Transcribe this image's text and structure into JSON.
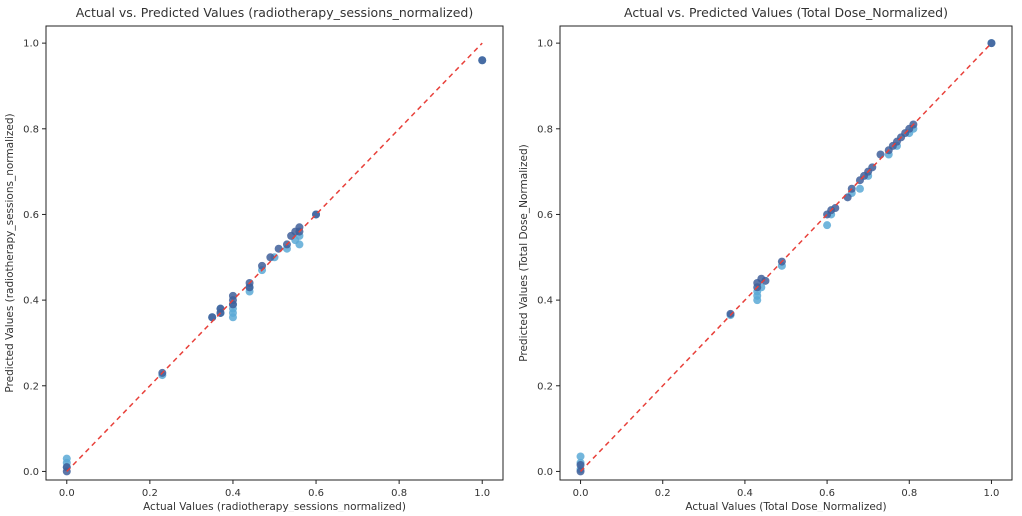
{
  "chart_data": [
    {
      "type": "scatter",
      "title": "Actual vs. Predicted Values (radiotherapy_sessions_normalized)",
      "xlabel": "Actual Values (radiotherapy_sessions_normalized)",
      "ylabel": "Predicted Values (radiotherapy_sessions_normalized)",
      "xlim": [
        -0.05,
        1.05
      ],
      "ylim": [
        -0.02,
        1.04
      ],
      "xticks": [
        "0.0",
        "0.2",
        "0.4",
        "0.6",
        "0.8",
        "1.0"
      ],
      "yticks": [
        "0.0",
        "0.2",
        "0.4",
        "0.6",
        "0.8",
        "1.0"
      ],
      "grid": false,
      "reference_line": {
        "from": [
          0,
          0
        ],
        "to": [
          1,
          1
        ],
        "style": "dashed",
        "color": "#e8403a"
      },
      "series": [
        {
          "color": "#5aa9d6",
          "points": [
            [
              0.0,
              0.03
            ],
            [
              0.0,
              0.02
            ],
            [
              0.0,
              0.01
            ],
            [
              0.23,
              0.225
            ],
            [
              0.35,
              0.36
            ],
            [
              0.37,
              0.37
            ],
            [
              0.37,
              0.38
            ],
            [
              0.4,
              0.37
            ],
            [
              0.4,
              0.36
            ],
            [
              0.4,
              0.38
            ],
            [
              0.4,
              0.39
            ],
            [
              0.44,
              0.42
            ],
            [
              0.44,
              0.43
            ],
            [
              0.47,
              0.47
            ],
            [
              0.5,
              0.5
            ],
            [
              0.53,
              0.52
            ],
            [
              0.55,
              0.54
            ],
            [
              0.56,
              0.53
            ],
            [
              0.56,
              0.55
            ],
            [
              0.6,
              0.6
            ],
            [
              1.0,
              0.96
            ]
          ]
        },
        {
          "color": "#3f5f9a",
          "points": [
            [
              0.0,
              0.0
            ],
            [
              0.0,
              0.01
            ],
            [
              0.23,
              0.23
            ],
            [
              0.35,
              0.36
            ],
            [
              0.37,
              0.37
            ],
            [
              0.37,
              0.38
            ],
            [
              0.4,
              0.39
            ],
            [
              0.4,
              0.4
            ],
            [
              0.4,
              0.41
            ],
            [
              0.44,
              0.44
            ],
            [
              0.44,
              0.43
            ],
            [
              0.47,
              0.48
            ],
            [
              0.49,
              0.5
            ],
            [
              0.51,
              0.52
            ],
            [
              0.53,
              0.53
            ],
            [
              0.54,
              0.55
            ],
            [
              0.55,
              0.56
            ],
            [
              0.56,
              0.57
            ],
            [
              0.56,
              0.56
            ],
            [
              0.6,
              0.6
            ],
            [
              1.0,
              0.96
            ]
          ]
        }
      ]
    },
    {
      "type": "scatter",
      "title": "Actual vs. Predicted Values (Total Dose_Normalized)",
      "xlabel": "Actual Values (Total Dose_Normalized)",
      "ylabel": "Predicted Values (Total Dose_Normalized)",
      "xlim": [
        -0.05,
        1.05
      ],
      "ylim": [
        -0.02,
        1.04
      ],
      "xticks": [
        "0.0",
        "0.2",
        "0.4",
        "0.6",
        "0.8",
        "1.0"
      ],
      "yticks": [
        "0.0",
        "0.2",
        "0.4",
        "0.6",
        "0.8",
        "1.0"
      ],
      "grid": false,
      "reference_line": {
        "from": [
          0,
          0
        ],
        "to": [
          1,
          1
        ],
        "style": "dashed",
        "color": "#e8403a"
      },
      "series": [
        {
          "color": "#5aa9d6",
          "points": [
            [
              0.0,
              0.035
            ],
            [
              0.0,
              0.02
            ],
            [
              0.0,
              0.005
            ],
            [
              0.365,
              0.365
            ],
            [
              0.43,
              0.4
            ],
            [
              0.43,
              0.41
            ],
            [
              0.43,
              0.42
            ],
            [
              0.44,
              0.43
            ],
            [
              0.49,
              0.48
            ],
            [
              0.6,
              0.575
            ],
            [
              0.61,
              0.6
            ],
            [
              0.66,
              0.65
            ],
            [
              0.68,
              0.66
            ],
            [
              0.7,
              0.69
            ],
            [
              0.75,
              0.74
            ],
            [
              0.77,
              0.76
            ],
            [
              0.8,
              0.79
            ],
            [
              0.81,
              0.8
            ],
            [
              1.0,
              1.0
            ]
          ]
        },
        {
          "color": "#3f5f9a",
          "points": [
            [
              0.0,
              0.0
            ],
            [
              0.0,
              0.015
            ],
            [
              0.365,
              0.368
            ],
            [
              0.43,
              0.43
            ],
            [
              0.43,
              0.44
            ],
            [
              0.44,
              0.45
            ],
            [
              0.45,
              0.445
            ],
            [
              0.49,
              0.49
            ],
            [
              0.6,
              0.6
            ],
            [
              0.61,
              0.61
            ],
            [
              0.62,
              0.615
            ],
            [
              0.65,
              0.64
            ],
            [
              0.66,
              0.66
            ],
            [
              0.68,
              0.68
            ],
            [
              0.69,
              0.69
            ],
            [
              0.7,
              0.7
            ],
            [
              0.71,
              0.71
            ],
            [
              0.73,
              0.74
            ],
            [
              0.75,
              0.75
            ],
            [
              0.76,
              0.76
            ],
            [
              0.77,
              0.77
            ],
            [
              0.78,
              0.78
            ],
            [
              0.79,
              0.79
            ],
            [
              0.8,
              0.8
            ],
            [
              0.81,
              0.81
            ],
            [
              1.0,
              1.0
            ]
          ]
        }
      ]
    }
  ]
}
